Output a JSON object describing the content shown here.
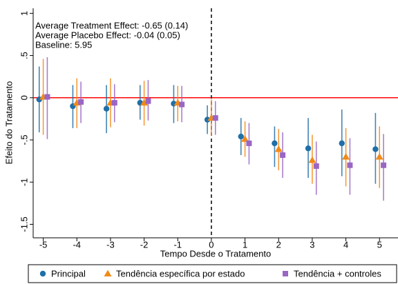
{
  "chart_data": {
    "type": "errorbar",
    "x_label": "Tempo Desde o Tratamento",
    "y_label": "Efeito do Tratamento",
    "annotations": [
      "Average Treatment Effect:  -0.65 (0.14)",
      "Average Placebo Effect:  -0.04 (0.05)",
      "Baseline:  5.95"
    ],
    "x": [
      -5,
      -4,
      -3,
      -2,
      -1,
      0,
      1,
      2,
      3,
      4,
      5
    ],
    "xlim": [
      -5.3,
      5.55
    ],
    "xticks": [
      -5,
      -4,
      -3,
      -2,
      -1,
      0,
      1,
      2,
      3,
      4,
      5
    ],
    "ylim": [
      -1.66,
      1.06
    ],
    "yticks": [
      {
        "value": -1.5,
        "label": "-1.5"
      },
      -1,
      {
        "value": -0.5,
        "label": "-.5"
      },
      0,
      {
        "value": 0.5,
        "label": ".5"
      },
      1
    ],
    "reference_line": {
      "y": 0,
      "color": "#ff0000"
    },
    "vertical_line": {
      "x": 0,
      "color": "#000000"
    },
    "legend": "bottom",
    "series": [
      {
        "name": "Principal",
        "color": "#1f6fa8",
        "marker": "circle",
        "offset": -0.12,
        "values": [
          -0.02,
          -0.1,
          -0.13,
          -0.06,
          -0.07,
          -0.26,
          -0.46,
          -0.54,
          -0.6,
          -0.54,
          -0.61
        ],
        "ci_low": [
          -0.41,
          -0.36,
          -0.42,
          -0.26,
          -0.3,
          -0.43,
          -0.68,
          -0.82,
          -0.95,
          -0.93,
          -1.02
        ],
        "ci_high": [
          0.37,
          0.15,
          0.15,
          0.15,
          0.15,
          -0.09,
          -0.24,
          -0.34,
          -0.24,
          -0.14,
          -0.18
        ]
      },
      {
        "name": "Tendência específica por estado",
        "color": "#f28a17",
        "marker": "triangle",
        "offset": 0,
        "values": [
          0.01,
          -0.06,
          -0.06,
          -0.06,
          -0.06,
          -0.24,
          -0.49,
          -0.61,
          -0.74,
          -0.7,
          -0.7
        ],
        "ci_low": [
          -0.44,
          -0.36,
          -0.35,
          -0.33,
          -0.28,
          -0.45,
          -0.7,
          -0.86,
          -1.02,
          -1.05,
          -1.07
        ],
        "ci_high": [
          0.46,
          0.23,
          0.23,
          0.2,
          0.14,
          -0.02,
          -0.28,
          -0.37,
          -0.44,
          -0.36,
          -0.34
        ]
      },
      {
        "name": "Tendência + controles",
        "color": "#9a66c4",
        "marker": "square",
        "offset": 0.12,
        "values": [
          0.01,
          -0.05,
          -0.06,
          -0.04,
          -0.08,
          -0.24,
          -0.54,
          -0.68,
          -0.81,
          -0.8,
          -0.8
        ],
        "ci_low": [
          -0.49,
          -0.3,
          -0.29,
          -0.27,
          -0.29,
          -0.44,
          -0.79,
          -0.95,
          -1.15,
          -1.15,
          -1.22
        ],
        "ci_high": [
          0.48,
          0.19,
          0.16,
          0.21,
          0.14,
          -0.04,
          -0.3,
          -0.41,
          -0.52,
          -0.48,
          -0.43
        ]
      }
    ]
  }
}
